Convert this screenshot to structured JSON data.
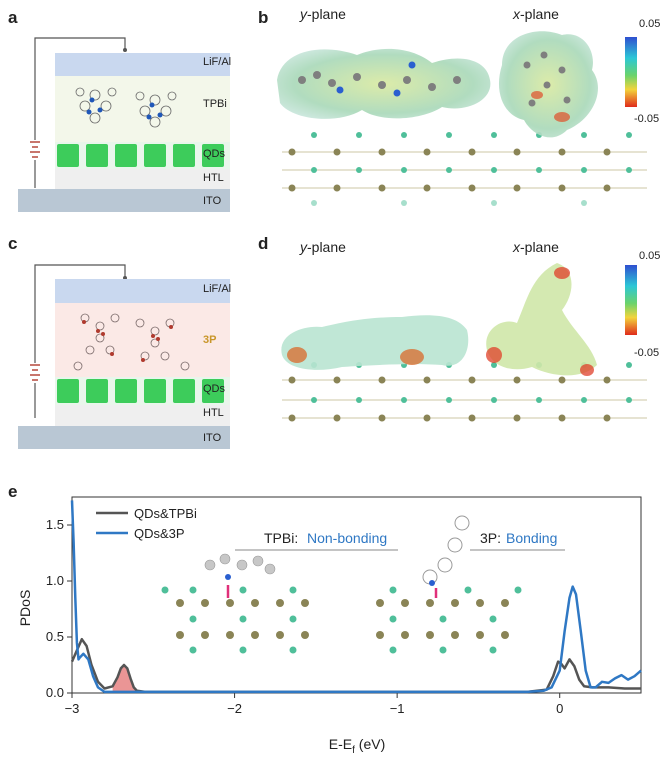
{
  "panels": {
    "a": "a",
    "b": "b",
    "c": "c",
    "d": "d",
    "e": "e"
  },
  "device_a": {
    "layers": [
      "LiF/Al",
      "TPBi",
      "QDs",
      "HTL",
      "ITO"
    ]
  },
  "device_c": {
    "layers": [
      "LiF/Al",
      "3P",
      "QDs",
      "HTL",
      "ITO"
    ]
  },
  "esp_b": {
    "y_prefix": "y",
    "x_prefix": "x",
    "plane_suffix": "-plane",
    "scale_max": "0.05",
    "scale_min": "-0.05"
  },
  "esp_d": {
    "y_prefix": "y",
    "x_prefix": "x",
    "plane_suffix": "-plane",
    "scale_max": "0.05",
    "scale_min": "-0.05"
  },
  "colors": {
    "tpbi_curve": "#555555",
    "p3_curve": "#2f78c4",
    "highlight_fill": "#e88a8a",
    "annotation_blue": "#2f78c4",
    "tpbi_layer_bg": "#f3f7ea",
    "p3_layer_bg": "#fbe9e6",
    "qd_green": "#3dcc5b",
    "lif_blue": "#c9d8ef"
  },
  "annotations": {
    "tpbi_name": "TPBi:",
    "tpbi_state": "Non-bonding",
    "p3_name": "3P:",
    "p3_state": "Bonding"
  },
  "chart_data": {
    "type": "line",
    "xlabel": "E-E",
    "xlabel_sub": "f",
    "xlabel_unit": " (eV)",
    "ylabel": "PDoS",
    "xlim": [
      -3.0,
      0.5
    ],
    "ylim": [
      0,
      1.75
    ],
    "xticks": [
      -3,
      -2,
      -1,
      0
    ],
    "xtick_labels": [
      "−3",
      "−2",
      "−1",
      "0"
    ],
    "yticks": [
      0.0,
      0.5,
      1.0,
      1.5
    ],
    "ytick_labels": [
      "0.0",
      "0.5",
      "1.0",
      "1.5"
    ],
    "legend_position": "top-left",
    "series": [
      {
        "name": "QDs&TPBi",
        "x": [
          -3.0,
          -2.97,
          -2.94,
          -2.91,
          -2.88,
          -2.84,
          -2.8,
          -2.75,
          -2.72,
          -2.7,
          -2.68,
          -2.66,
          -2.64,
          -2.62,
          -2.6,
          -2.55,
          -2.4,
          -2.0,
          -1.5,
          -1.0,
          -0.5,
          -0.2,
          -0.08,
          -0.04,
          -0.01,
          0.01,
          0.03,
          0.06,
          0.09,
          0.12,
          0.15,
          0.2,
          0.3,
          0.4,
          0.5
        ],
        "y": [
          0.28,
          0.38,
          0.48,
          0.42,
          0.25,
          0.1,
          0.04,
          0.06,
          0.14,
          0.22,
          0.25,
          0.22,
          0.13,
          0.05,
          0.02,
          0.01,
          0.01,
          0.01,
          0.01,
          0.01,
          0.01,
          0.01,
          0.03,
          0.15,
          0.28,
          0.26,
          0.22,
          0.3,
          0.24,
          0.12,
          0.06,
          0.05,
          0.05,
          0.04,
          0.04
        ]
      },
      {
        "name": "QDs&3P",
        "x": [
          -3.0,
          -2.99,
          -2.98,
          -2.97,
          -2.96,
          -2.95,
          -2.93,
          -2.9,
          -2.87,
          -2.84,
          -2.8,
          -2.75,
          -2.7,
          -2.6,
          -2.4,
          -2.0,
          -1.5,
          -1.0,
          -0.5,
          -0.2,
          -0.1,
          -0.05,
          0.0,
          0.03,
          0.06,
          0.08,
          0.1,
          0.13,
          0.16,
          0.19,
          0.22,
          0.26,
          0.3,
          0.34,
          0.38,
          0.42,
          0.46,
          0.5
        ],
        "y": [
          1.72,
          1.35,
          0.85,
          0.45,
          0.3,
          0.32,
          0.35,
          0.3,
          0.15,
          0.05,
          0.01,
          0.01,
          0.01,
          0.01,
          0.01,
          0.01,
          0.01,
          0.01,
          0.01,
          0.01,
          0.02,
          0.05,
          0.2,
          0.55,
          0.85,
          0.95,
          0.88,
          0.55,
          0.2,
          0.05,
          0.05,
          0.1,
          0.09,
          0.13,
          0.16,
          0.12,
          0.15,
          0.2
        ]
      }
    ]
  }
}
